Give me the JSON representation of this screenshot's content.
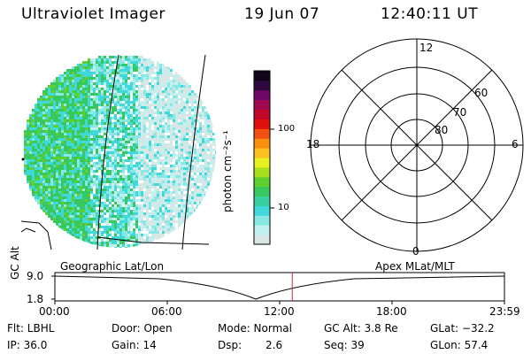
{
  "header": {
    "title": "Ultraviolet Imager",
    "date": "19 Jun 07",
    "time": "12:40:11 UT"
  },
  "colorbar": {
    "label": "photon cm⁻²s⁻¹",
    "ticks": [
      "100",
      "10"
    ],
    "colors": [
      "#d8e6e6",
      "#c2f0ee",
      "#8ae8e4",
      "#40d8d8",
      "#38d0a0",
      "#38c860",
      "#60d030",
      "#a8e020",
      "#e8f020",
      "#f8c020",
      "#f89010",
      "#f05010",
      "#e01010",
      "#c00828",
      "#a00850",
      "#700868",
      "#300840",
      "#100418"
    ]
  },
  "polar": {
    "lat_labels": [
      "80",
      "70",
      "60"
    ],
    "mlt_labels": {
      "top": "12",
      "bottom": "0",
      "left": "18",
      "right": "6"
    }
  },
  "timeline": {
    "axis_label": "GC Alt",
    "left_label": "Geographic Lat/Lon",
    "right_label": "Apex MLat/MLT",
    "y_ticks": [
      "9.0",
      "1.8"
    ],
    "x_ticks": [
      "00:00",
      "06:00",
      "12:00",
      "18:00",
      "23:59"
    ],
    "marker_color": "#c83030",
    "current_time_fraction": 0.528
  },
  "status": {
    "flt": "Flt: LBHL",
    "ip": "IP: 36.0",
    "door": "Door: Open",
    "gain": "Gain: 14",
    "mode": "Mode: Normal",
    "dsp_label": "Dsp:",
    "dsp_value": "2.6",
    "gc_alt": "GC Alt: 3.8 Re",
    "seq": "Seq: 39",
    "glat": "GLat: −32.2",
    "glon": "GLon:  57.4"
  }
}
